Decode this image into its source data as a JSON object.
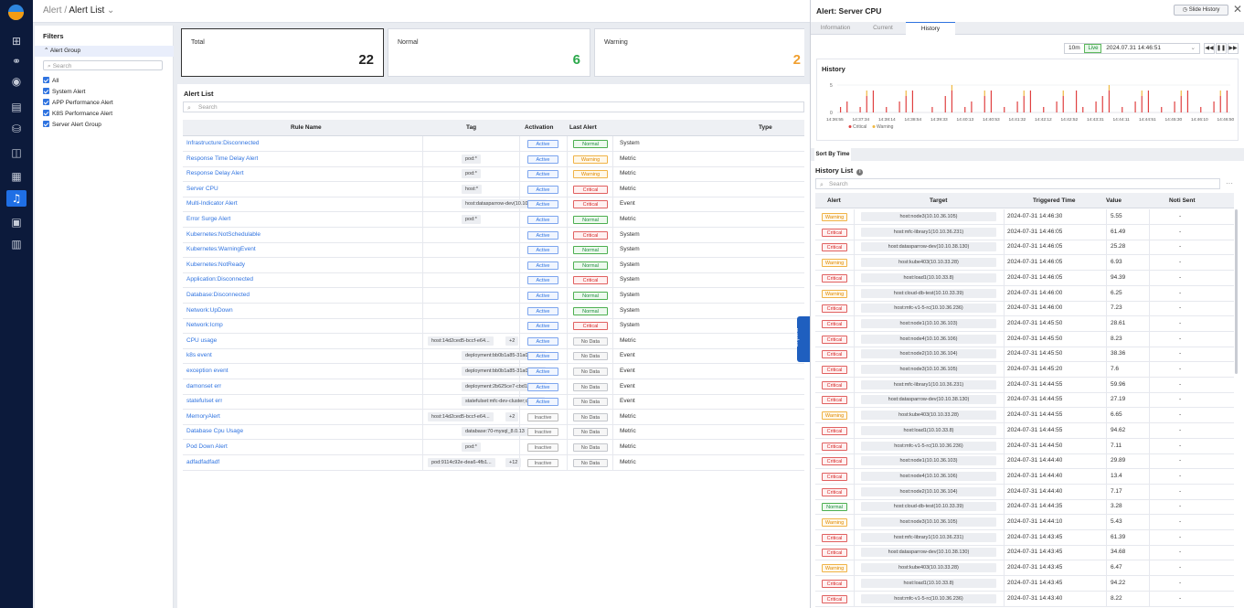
{
  "breadcrumb": {
    "parent": "Alert",
    "current": "Alert List"
  },
  "filters": {
    "title": "Filters",
    "group_label": "Alert Group",
    "search_placeholder": "Search",
    "options": [
      "All",
      "System Alert",
      "APP Performance Alert",
      "K8S Performance Alert",
      "Server Alert Group"
    ]
  },
  "summary": [
    {
      "label": "Total",
      "value": "22",
      "color": "#222222"
    },
    {
      "label": "Normal",
      "value": "6",
      "color": "#2aa84a"
    },
    {
      "label": "Warning",
      "value": "2",
      "color": "#f0a030"
    }
  ],
  "alert_list": {
    "title": "Alert List",
    "search_placeholder": "Search",
    "columns": [
      "Rule Name",
      "Tag",
      "Activation",
      "Last Alert",
      "Type"
    ],
    "rows": [
      {
        "name": "Infrastructure:Disconnected",
        "tag": "",
        "activation": "Active",
        "last_alert": "Normal",
        "type": "System"
      },
      {
        "name": "Response Time Delay Alert",
        "tag": "pod:*",
        "activation": "Active",
        "last_alert": "Warning",
        "type": "Metric"
      },
      {
        "name": "Response Delay Alert",
        "tag": "pod:*",
        "activation": "Active",
        "last_alert": "Warning",
        "type": "Metric"
      },
      {
        "name": "Server CPU",
        "tag": "host:*",
        "activation": "Active",
        "last_alert": "Critical",
        "type": "Metric"
      },
      {
        "name": "Multi-Indicator Alert",
        "tag": "host:datasparrow-dev(10.10.38.1...",
        "activation": "Active",
        "last_alert": "Critical",
        "type": "Event"
      },
      {
        "name": "Error Surge Alert",
        "tag": "pod:*",
        "activation": "Active",
        "last_alert": "Normal",
        "type": "Metric"
      },
      {
        "name": "Kubernetes:NotSchedulable",
        "tag": "",
        "activation": "Active",
        "last_alert": "Critical",
        "type": "System"
      },
      {
        "name": "Kubernetes:WarningEvent",
        "tag": "",
        "activation": "Active",
        "last_alert": "Normal",
        "type": "System"
      },
      {
        "name": "Kubernetes:NotReady",
        "tag": "",
        "activation": "Active",
        "last_alert": "Normal",
        "type": "System"
      },
      {
        "name": "Application:Disconnected",
        "tag": "",
        "activation": "Active",
        "last_alert": "Critical",
        "type": "System"
      },
      {
        "name": "Database:Disconnected",
        "tag": "",
        "activation": "Active",
        "last_alert": "Normal",
        "type": "System"
      },
      {
        "name": "Network:UpDown",
        "tag": "",
        "activation": "Active",
        "last_alert": "Normal",
        "type": "System"
      },
      {
        "name": "Network:Icmp",
        "tag": "",
        "activation": "Active",
        "last_alert": "Critical",
        "type": "System"
      },
      {
        "name": "CPU usage",
        "tag": "host:14d2ced5-bccf-e64...",
        "extra": "+2",
        "activation": "Active",
        "last_alert": "No Data",
        "type": "Metric"
      },
      {
        "name": "k8s event",
        "tag": "deployment:bb0b1a85-31a0-46d...",
        "activation": "Active",
        "last_alert": "No Data",
        "type": "Event"
      },
      {
        "name": "exception event",
        "tag": "deployment:bb0b1a85-31a0-46d...",
        "activation": "Active",
        "last_alert": "No Data",
        "type": "Event"
      },
      {
        "name": "damonset err",
        "tag": "deployment:2b625ce7-cbd1-4ff8-...",
        "activation": "Active",
        "last_alert": "No Data",
        "type": "Event"
      },
      {
        "name": "statefulset err",
        "tag": "statefulset:mfc-dev-cluster;cloud...",
        "activation": "Active",
        "last_alert": "No Data",
        "type": "Event"
      },
      {
        "name": "MemoryAlert",
        "tag": "host:14d2ced5-bccf-e64...",
        "extra": "+2",
        "activation": "Inactive",
        "last_alert": "No Data",
        "type": "Metric"
      },
      {
        "name": "Database Cpu Usage",
        "tag": "database:70-mysql_8.0.13",
        "activation": "Inactive",
        "last_alert": "No Data",
        "type": "Metric"
      },
      {
        "name": "Pod Down Alert",
        "tag": "pod:*",
        "activation": "Inactive",
        "last_alert": "No Data",
        "type": "Metric"
      },
      {
        "name": "adfadfadfadf",
        "tag": "pod:9114c92e-dea6-4fb1...",
        "extra": "+12",
        "activation": "Inactive",
        "last_alert": "No Data",
        "type": "Metric"
      }
    ]
  },
  "expand_label": "Expand",
  "drawer": {
    "title": "Alert: Server CPU",
    "slide_history_label": "Slide History",
    "tabs": [
      "Information",
      "Current",
      "History"
    ],
    "active_tab": "History",
    "range": "10m",
    "live_label": "Live",
    "datetime": "2024.07.31 14:46:51",
    "controls": [
      "◀◀",
      "❚❚",
      "▶▶"
    ],
    "history_chart_title": "History",
    "sort_tab": "Sort By Time",
    "history_list_title": "History List",
    "search_placeholder": "Search",
    "columns": [
      "Alert",
      "Target",
      "Triggered Time",
      "Value",
      "Noti Sent"
    ],
    "rows": [
      {
        "alert": "Warning",
        "target": "host:node3(10.10.36.105)",
        "time": "2024-07-31 14:46:30",
        "value": "5.55",
        "noti": "-"
      },
      {
        "alert": "Critical",
        "target": "host:mfc-library1(10.10.36.231)",
        "time": "2024-07-31 14:46:05",
        "value": "61.49",
        "noti": "-"
      },
      {
        "alert": "Critical",
        "target": "host:datasparrow-dev(10.10.38.130)",
        "time": "2024-07-31 14:46:05",
        "value": "25.28",
        "noti": "-"
      },
      {
        "alert": "Warning",
        "target": "host:kube403(10.10.33.28)",
        "time": "2024-07-31 14:46:05",
        "value": "6.93",
        "noti": "-"
      },
      {
        "alert": "Critical",
        "target": "host:load1(10.10.33.8)",
        "time": "2024-07-31 14:46:05",
        "value": "94.39",
        "noti": "-"
      },
      {
        "alert": "Warning",
        "target": "host:cloud-db-test(10.10.33.39)",
        "time": "2024-07-31 14:46:00",
        "value": "6.25",
        "noti": "-"
      },
      {
        "alert": "Critical",
        "target": "host:mfc-v1-5-rc(10.10.36.236)",
        "time": "2024-07-31 14:46:00",
        "value": "7.23",
        "noti": "-"
      },
      {
        "alert": "Critical",
        "target": "host:node1(10.10.36.103)",
        "time": "2024-07-31 14:45:50",
        "value": "28.61",
        "noti": "-"
      },
      {
        "alert": "Critical",
        "target": "host:node4(10.10.36.106)",
        "time": "2024-07-31 14:45:50",
        "value": "8.23",
        "noti": "-"
      },
      {
        "alert": "Critical",
        "target": "host:node2(10.10.36.104)",
        "time": "2024-07-31 14:45:50",
        "value": "38.36",
        "noti": "-"
      },
      {
        "alert": "Critical",
        "target": "host:node3(10.10.36.105)",
        "time": "2024-07-31 14:45:20",
        "value": "7.6",
        "noti": "-"
      },
      {
        "alert": "Critical",
        "target": "host:mfc-library1(10.10.36.231)",
        "time": "2024-07-31 14:44:55",
        "value": "59.96",
        "noti": "-"
      },
      {
        "alert": "Critical",
        "target": "host:datasparrow-dev(10.10.38.130)",
        "time": "2024-07-31 14:44:55",
        "value": "27.19",
        "noti": "-"
      },
      {
        "alert": "Warning",
        "target": "host:kube403(10.10.33.28)",
        "time": "2024-07-31 14:44:55",
        "value": "6.65",
        "noti": "-"
      },
      {
        "alert": "Critical",
        "target": "host:load1(10.10.33.8)",
        "time": "2024-07-31 14:44:55",
        "value": "94.62",
        "noti": "-"
      },
      {
        "alert": "Critical",
        "target": "host:mfc-v1-5-rc(10.10.36.236)",
        "time": "2024-07-31 14:44:50",
        "value": "7.11",
        "noti": "-"
      },
      {
        "alert": "Critical",
        "target": "host:node1(10.10.36.103)",
        "time": "2024-07-31 14:44:40",
        "value": "29.89",
        "noti": "-"
      },
      {
        "alert": "Critical",
        "target": "host:node4(10.10.36.106)",
        "time": "2024-07-31 14:44:40",
        "value": "13.4",
        "noti": "-"
      },
      {
        "alert": "Critical",
        "target": "host:node2(10.10.36.104)",
        "time": "2024-07-31 14:44:40",
        "value": "7.17",
        "noti": "-"
      },
      {
        "alert": "Normal",
        "target": "host:cloud-db-test(10.10.33.39)",
        "time": "2024-07-31 14:44:35",
        "value": "3.28",
        "noti": "-"
      },
      {
        "alert": "Warning",
        "target": "host:node3(10.10.36.105)",
        "time": "2024-07-31 14:44:10",
        "value": "5.43",
        "noti": "-"
      },
      {
        "alert": "Critical",
        "target": "host:mfc-library1(10.10.36.231)",
        "time": "2024-07-31 14:43:45",
        "value": "61.39",
        "noti": "-"
      },
      {
        "alert": "Critical",
        "target": "host:datasparrow-dev(10.10.38.130)",
        "time": "2024-07-31 14:43:45",
        "value": "34.68",
        "noti": "-"
      },
      {
        "alert": "Warning",
        "target": "host:kube403(10.10.33.28)",
        "time": "2024-07-31 14:43:45",
        "value": "6.47",
        "noti": "-"
      },
      {
        "alert": "Critical",
        "target": "host:load1(10.10.33.8)",
        "time": "2024-07-31 14:43:45",
        "value": "94.22",
        "noti": "-"
      },
      {
        "alert": "Critical",
        "target": "host:mfc-v1-5-rc(10.10.36.236)",
        "time": "2024-07-31 14:43:40",
        "value": "8.22",
        "noti": "-"
      }
    ]
  },
  "chart_data": {
    "type": "bar",
    "title": "History",
    "ylim": [
      0,
      5
    ],
    "y_ticks": [
      "5",
      "0"
    ],
    "x_ticks": [
      "14:36:55",
      "14:37:34",
      "14:38:14",
      "14:38:54",
      "14:39:33",
      "14:40:13",
      "14:40:53",
      "14:41:32",
      "14:42:12",
      "14:42:52",
      "14:43:31",
      "14:44:11",
      "14:44:51",
      "14:45:30",
      "14:46:10",
      "14:46:50"
    ],
    "legend": "bottom",
    "grid": true,
    "series": [
      {
        "name": "Critical",
        "color": "#e04040",
        "values": [
          1,
          2,
          0,
          1,
          3,
          4,
          0,
          1,
          0,
          2,
          3,
          4,
          0,
          0,
          1,
          0,
          3,
          4,
          0,
          1,
          2,
          0,
          3,
          4,
          0,
          1,
          0,
          2,
          3,
          4,
          0,
          1,
          0,
          2,
          3,
          0,
          4,
          1,
          0,
          2,
          3,
          4,
          0,
          1,
          0,
          2,
          3,
          4,
          0,
          1,
          0,
          2,
          3,
          4,
          0,
          1,
          0,
          2,
          3,
          4
        ]
      },
      {
        "name": "Warning",
        "color": "#f0b840",
        "values": [
          0,
          0,
          0,
          0,
          1,
          0,
          0,
          0,
          0,
          0,
          1,
          0,
          0,
          0,
          0,
          0,
          0,
          1,
          0,
          0,
          0,
          0,
          1,
          0,
          0,
          0,
          0,
          0,
          1,
          0,
          0,
          0,
          0,
          0,
          1,
          0,
          0,
          0,
          0,
          0,
          0,
          1,
          0,
          0,
          0,
          0,
          1,
          0,
          0,
          0,
          0,
          0,
          1,
          0,
          0,
          0,
          0,
          0,
          1,
          0
        ]
      }
    ]
  }
}
